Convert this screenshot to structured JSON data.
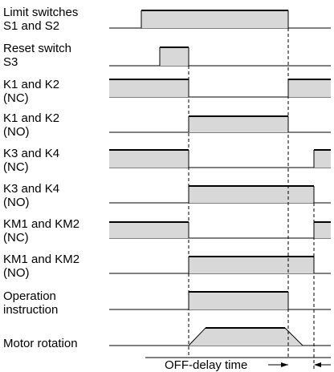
{
  "signals": [
    {
      "id": "limit-switches",
      "lines": [
        "Limit switches",
        "S1 and S2"
      ]
    },
    {
      "id": "reset-switch",
      "lines": [
        "Reset switch",
        "S3"
      ]
    },
    {
      "id": "k1-k2-nc",
      "lines": [
        "K1 and K2",
        "(NC)"
      ]
    },
    {
      "id": "k1-k2-no",
      "lines": [
        "K1 and K2",
        "(NO)"
      ]
    },
    {
      "id": "k3-k4-nc",
      "lines": [
        "K3 and K4",
        "(NC)"
      ]
    },
    {
      "id": "k3-k4-no",
      "lines": [
        "K3 and K4",
        "(NO)"
      ]
    },
    {
      "id": "km1-km2-nc",
      "lines": [
        "KM1 and KM2",
        "(NC)"
      ]
    },
    {
      "id": "km1-km2-no",
      "lines": [
        "KM1 and KM2",
        "(NO)"
      ]
    },
    {
      "id": "operation-instruction",
      "lines": [
        "Operation",
        "instruction"
      ]
    },
    {
      "id": "motor-rotation",
      "lines": [
        "Motor rotation"
      ]
    }
  ],
  "annotation": {
    "off_delay_label": "OFF-delay time"
  },
  "colors": {
    "pulse_fill": "#d8d8d8",
    "line": "#000000"
  }
}
